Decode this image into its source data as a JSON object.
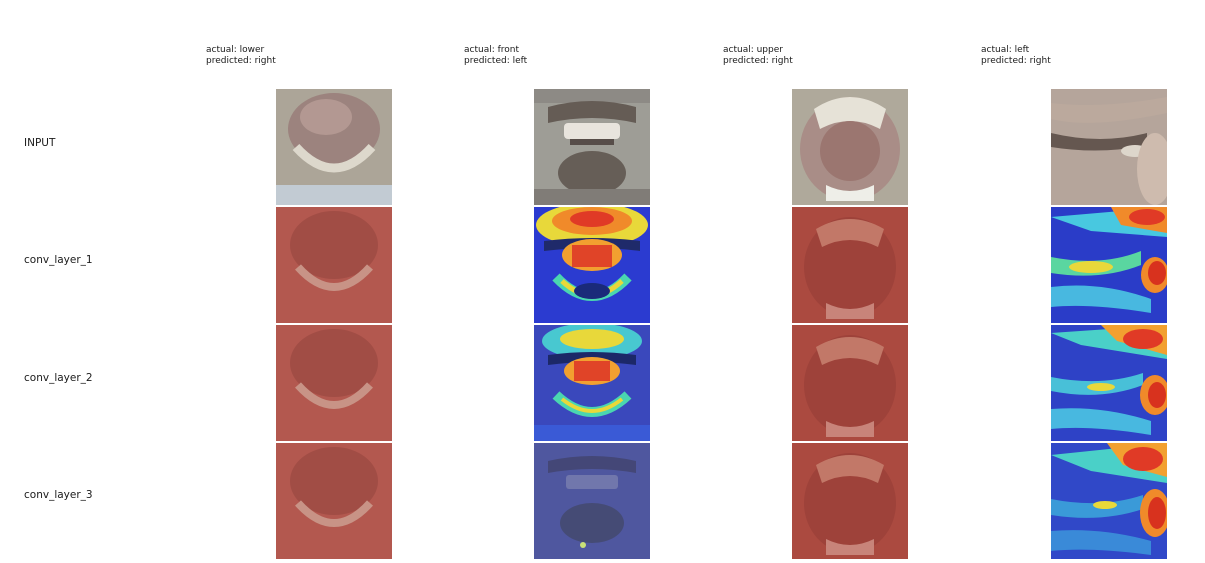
{
  "columns": [
    {
      "actual": "actual: lower",
      "predicted": "predicted: right"
    },
    {
      "actual": "actual: front",
      "predicted": "predicted: left"
    },
    {
      "actual": "actual: upper",
      "predicted": "predicted: right"
    },
    {
      "actual": "actual: left",
      "predicted": "predicted: right"
    }
  ],
  "rows": [
    {
      "label": "INPUT"
    },
    {
      "label": "conv_layer_1"
    },
    {
      "label": "conv_layer_2"
    },
    {
      "label": "conv_layer_3"
    }
  ],
  "palette": {
    "heatmap_red": "#b04a3f",
    "heatmap_blue": "#3a44b4",
    "heatmap_yellow": "#f4e12c",
    "heatmap_cyan": "#3ec6d8",
    "input_tone": "#9c9282"
  }
}
